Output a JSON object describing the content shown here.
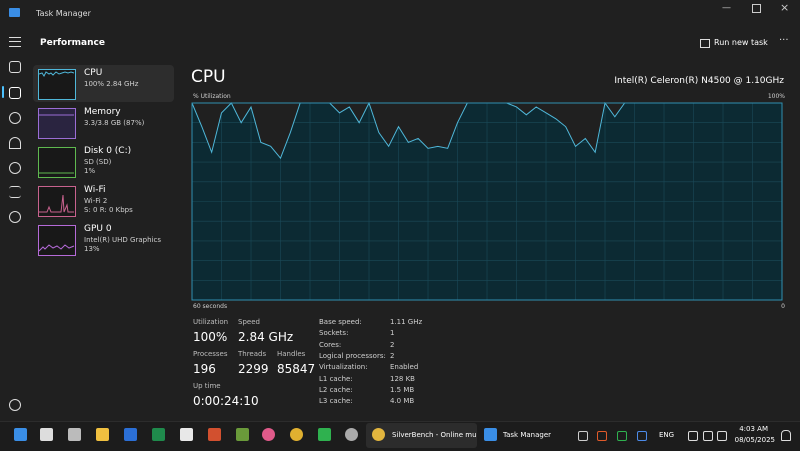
{
  "window": {
    "title": "Task Manager"
  },
  "header": {
    "title": "Performance",
    "action": "Run new task"
  },
  "devices": [
    {
      "name": "CPU",
      "lines": [
        "100%  2.84 GHz"
      ]
    },
    {
      "name": "Memory",
      "lines": [
        "3.3/3.8 GB (87%)"
      ]
    },
    {
      "name": "Disk 0 (C:)",
      "lines": [
        "SD (SD)",
        "1%"
      ]
    },
    {
      "name": "Wi-Fi",
      "lines": [
        "Wi-Fi 2",
        "S: 0 R: 0 Kbps"
      ]
    },
    {
      "name": "GPU 0",
      "lines": [
        "Intel(R) UHD Graphics",
        "13%"
      ]
    }
  ],
  "detail": {
    "title": "CPU",
    "model": "Intel(R) Celeron(R) N4500 @ 1.10GHz",
    "graph": {
      "label": "% Utilization",
      "max_label": "100%",
      "time_label": "60 seconds",
      "end_label": "0",
      "ylim": [
        0,
        100
      ],
      "values": [
        100,
        88,
        75,
        95,
        100,
        90,
        98,
        80,
        78,
        72,
        85,
        100,
        100,
        100,
        100,
        95,
        98,
        90,
        100,
        85,
        78,
        88,
        80,
        82,
        77,
        78,
        77,
        90,
        100,
        100,
        100,
        100,
        100,
        98,
        94,
        98,
        95,
        92,
        88,
        78,
        82,
        75,
        100,
        93,
        100,
        100,
        100,
        100,
        100,
        100,
        100,
        100,
        100,
        100,
        100,
        100,
        100,
        100,
        100,
        100,
        100
      ]
    },
    "stats": [
      {
        "label": "Utilization",
        "value": "100%"
      },
      {
        "label": "Speed",
        "value": "2.84 GHz"
      },
      {
        "label": "Processes",
        "value": "196"
      },
      {
        "label": "Threads",
        "value": "2299"
      },
      {
        "label": "Handles",
        "value": "85847"
      },
      {
        "label": "Up time",
        "value": "0:00:24:10"
      }
    ],
    "specs": [
      {
        "label": "Base speed:",
        "value": "1.11 GHz"
      },
      {
        "label": "Sockets:",
        "value": "1"
      },
      {
        "label": "Cores:",
        "value": "2"
      },
      {
        "label": "Logical processors:",
        "value": "2"
      },
      {
        "label": "Virtualization:",
        "value": "Enabled"
      },
      {
        "label": "L1 cache:",
        "value": "128 KB"
      },
      {
        "label": "L2 cache:",
        "value": "1.5 MB"
      },
      {
        "label": "L3 cache:",
        "value": "4.0 MB"
      }
    ]
  },
  "taskbar": {
    "apps": [
      "SilverBench - Online mu",
      "Task Manager"
    ],
    "language": "ENG",
    "time": "4:03 AM",
    "date": "08/05/2025"
  }
}
